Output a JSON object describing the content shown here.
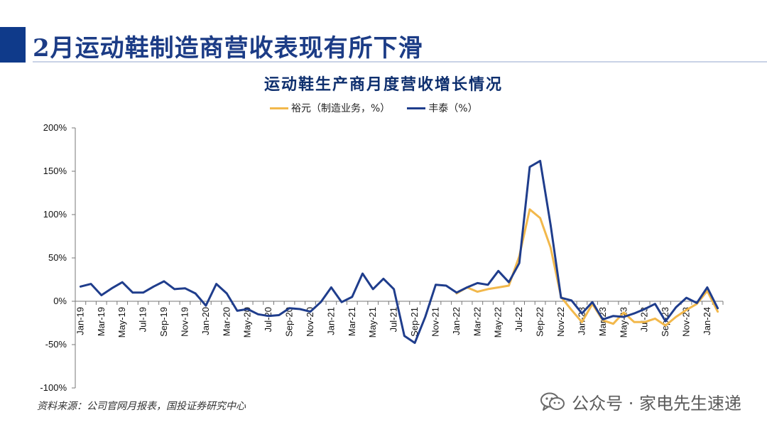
{
  "header": {
    "title": "2月运动鞋制造商营收表现有所下滑"
  },
  "source_text": "资料来源：公司官网月报表，国投证券研究中心",
  "watermark": {
    "text": "公众号 · 家电先生速递",
    "icon": "wechat-icon"
  },
  "colors": {
    "title_bar": "#0f3a8a",
    "yuyuan": "#f2b84b",
    "fengtai": "#1f3d8c"
  },
  "chart_data": {
    "type": "line",
    "title": "运动鞋生产商月度营收增长情况",
    "ylim": [
      -100,
      200
    ],
    "yticks": [
      -100,
      -50,
      0,
      50,
      100,
      150,
      200
    ],
    "ytick_labels": [
      "-100%",
      "-50%",
      "0%",
      "50%",
      "100%",
      "150%",
      "200%"
    ],
    "y_unit": "%",
    "grid": false,
    "legend_position": "top-center",
    "x": [
      "Jan-19",
      "Feb-19",
      "Mar-19",
      "Apr-19",
      "May-19",
      "Jun-19",
      "Jul-19",
      "Aug-19",
      "Sep-19",
      "Oct-19",
      "Nov-19",
      "Dec-19",
      "Jan-20",
      "Feb-20",
      "Mar-20",
      "Apr-20",
      "May-20",
      "Jun-20",
      "Jul-20",
      "Aug-20",
      "Sep-20",
      "Oct-20",
      "Nov-20",
      "Dec-20",
      "Jan-21",
      "Feb-21",
      "Mar-21",
      "Apr-21",
      "May-21",
      "Jun-21",
      "Jul-21",
      "Aug-21",
      "Sep-21",
      "Oct-21",
      "Nov-21",
      "Dec-21",
      "Jan-22",
      "Feb-22",
      "Mar-22",
      "Apr-22",
      "May-22",
      "Jun-22",
      "Jul-22",
      "Aug-22",
      "Sep-22",
      "Oct-22",
      "Nov-22",
      "Dec-22",
      "Jan-23",
      "Feb-23",
      "Mar-23",
      "Apr-23",
      "May-23",
      "Jun-23",
      "Jul-23",
      "Aug-23",
      "Sep-23",
      "Oct-23",
      "Nov-23",
      "Dec-23",
      "Jan-24",
      "Feb-24"
    ],
    "tick_labels": [
      "Jan-19",
      "Mar-19",
      "May-19",
      "Jul-19",
      "Sep-19",
      "Nov-19",
      "Jan-20",
      "Mar-20",
      "May-20",
      "Jul-20",
      "Sep-20",
      "Nov-20",
      "Jan-21",
      "Mar-21",
      "May-21",
      "Jul-21",
      "Sep-21",
      "Nov-21",
      "Jan-22",
      "Mar-22",
      "May-22",
      "Jul-22",
      "Sep-22",
      "Nov-22",
      "Jan-23",
      "Mar-23",
      "May-23",
      "Jul-23",
      "Sep-23",
      "Nov-23",
      "Jan-24"
    ],
    "series": [
      {
        "name": "裕元（制造业务，%）",
        "color": "#f2b84b",
        "values": [
          null,
          null,
          null,
          null,
          null,
          null,
          null,
          null,
          null,
          null,
          null,
          null,
          null,
          null,
          null,
          null,
          null,
          null,
          null,
          null,
          null,
          null,
          null,
          null,
          null,
          null,
          null,
          null,
          null,
          null,
          null,
          null,
          null,
          null,
          null,
          null,
          9,
          16,
          11,
          14,
          16,
          18,
          52,
          106,
          96,
          62,
          5,
          -10,
          -24,
          -3,
          -22,
          -26,
          -13,
          -24,
          -24,
          -20,
          -28,
          -18,
          -10,
          -3,
          12,
          -12
        ]
      },
      {
        "name": "丰泰（%）",
        "color": "#1f3d8c",
        "values": [
          17,
          20,
          7,
          15,
          22,
          10,
          10,
          17,
          23,
          14,
          15,
          9,
          -5,
          20,
          9,
          -11,
          -9,
          -15,
          -17,
          -16,
          -8,
          -9,
          -12,
          -1,
          16,
          -1,
          5,
          32,
          14,
          26,
          14,
          -40,
          -48,
          -18,
          19,
          18,
          10,
          16,
          21,
          19,
          35,
          22,
          44,
          155,
          162,
          88,
          4,
          1,
          -14,
          -1,
          -21,
          -17,
          -18,
          -14,
          -9,
          -3,
          -23,
          -7,
          4,
          -2,
          16,
          -8
        ]
      }
    ]
  }
}
